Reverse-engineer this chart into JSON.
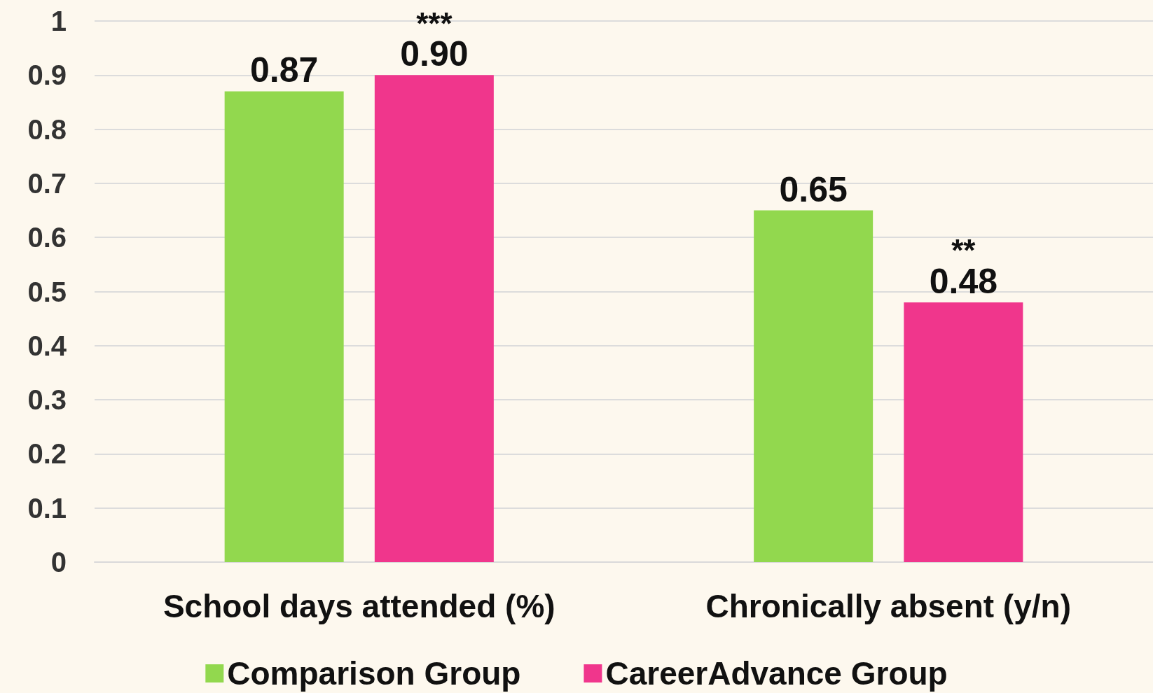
{
  "chart_data": {
    "type": "bar",
    "categories": [
      "School days attended (%)",
      "Chronically absent (y/n)"
    ],
    "series": [
      {
        "name": "Comparison Group",
        "color": "#92d84e",
        "values": [
          0.87,
          0.65
        ],
        "value_labels": [
          "0.87",
          "0.65"
        ]
      },
      {
        "name": "CareerAdvance Group",
        "color": "#f0368c",
        "values": [
          0.9,
          0.48
        ],
        "value_labels": [
          "0.90",
          "0.48"
        ]
      }
    ],
    "ylim": [
      0,
      1
    ],
    "yticks": [
      0,
      0.1,
      0.2,
      0.3,
      0.4,
      0.5,
      0.6,
      0.7,
      0.8,
      0.9,
      1
    ],
    "grid": "y",
    "legend": "bottom",
    "annotations": [
      "***",
      "**"
    ]
  }
}
